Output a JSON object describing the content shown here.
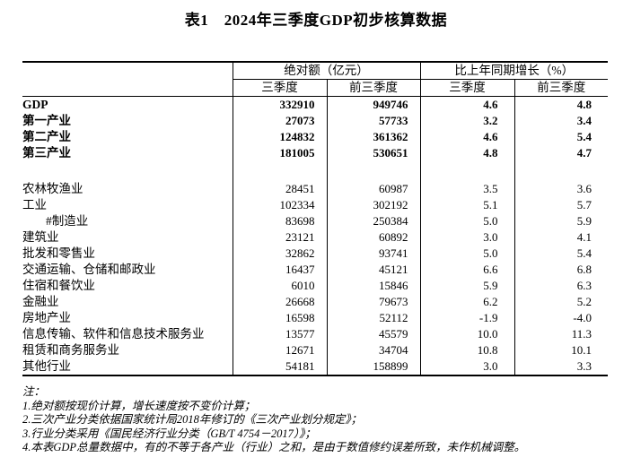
{
  "title": "表1　2024年三季度GDP初步核算数据",
  "table": {
    "header": {
      "group_absolute": "绝对额（亿元）",
      "group_growth": "比上年同期增长（%）",
      "sub": [
        "三季度",
        "前三季度",
        "三季度",
        "前三季度"
      ]
    },
    "rows": [
      {
        "label": "GDP",
        "bold": true,
        "values": [
          "332910",
          "949746",
          "4.6",
          "4.8"
        ]
      },
      {
        "label": "第一产业",
        "bold": true,
        "values": [
          "27073",
          "57733",
          "3.2",
          "3.4"
        ]
      },
      {
        "label": "第二产业",
        "bold": true,
        "values": [
          "124832",
          "361362",
          "4.6",
          "5.4"
        ]
      },
      {
        "label": "第三产业",
        "bold": true,
        "values": [
          "181005",
          "530651",
          "4.8",
          "4.7"
        ]
      },
      {
        "label": "",
        "spacer": true,
        "values": [
          "",
          "",
          "",
          ""
        ]
      },
      {
        "label": "农林牧渔业",
        "values": [
          "28451",
          "60987",
          "3.5",
          "3.6"
        ]
      },
      {
        "label": "工业",
        "values": [
          "102334",
          "302192",
          "5.1",
          "5.7"
        ]
      },
      {
        "label": "#制造业",
        "indent": true,
        "values": [
          "83698",
          "250384",
          "5.0",
          "5.9"
        ]
      },
      {
        "label": "建筑业",
        "values": [
          "23121",
          "60892",
          "3.0",
          "4.1"
        ]
      },
      {
        "label": "批发和零售业",
        "values": [
          "32862",
          "93741",
          "5.0",
          "5.4"
        ]
      },
      {
        "label": "交通运输、仓储和邮政业",
        "values": [
          "16437",
          "45121",
          "6.6",
          "6.8"
        ]
      },
      {
        "label": "住宿和餐饮业",
        "values": [
          "6010",
          "15846",
          "5.9",
          "6.3"
        ]
      },
      {
        "label": "金融业",
        "values": [
          "26668",
          "79673",
          "6.2",
          "5.2"
        ]
      },
      {
        "label": "房地产业",
        "values": [
          "16598",
          "52112",
          "-1.9",
          "-4.0"
        ]
      },
      {
        "label": "信息传输、软件和信息技术服务业",
        "values": [
          "13577",
          "45579",
          "10.0",
          "11.3"
        ]
      },
      {
        "label": "租赁和商务服务业",
        "values": [
          "12671",
          "34704",
          "10.8",
          "10.1"
        ]
      },
      {
        "label": "其他行业",
        "values": [
          "54181",
          "158899",
          "3.0",
          "3.3"
        ]
      }
    ]
  },
  "notes": [
    "注：",
    "1.绝对额按现价计算，增长速度按不变价计算；",
    "2.三次产业分类依据国家统计局2018年修订的《三次产业划分规定》；",
    "3.行业分类采用《国民经济行业分类（GB/T 4754－2017）》；",
    "4.本表GDP总量数据中，有的不等于各产业（行业）之和，是由于数值修约误差所致，未作机械调整。"
  ]
}
